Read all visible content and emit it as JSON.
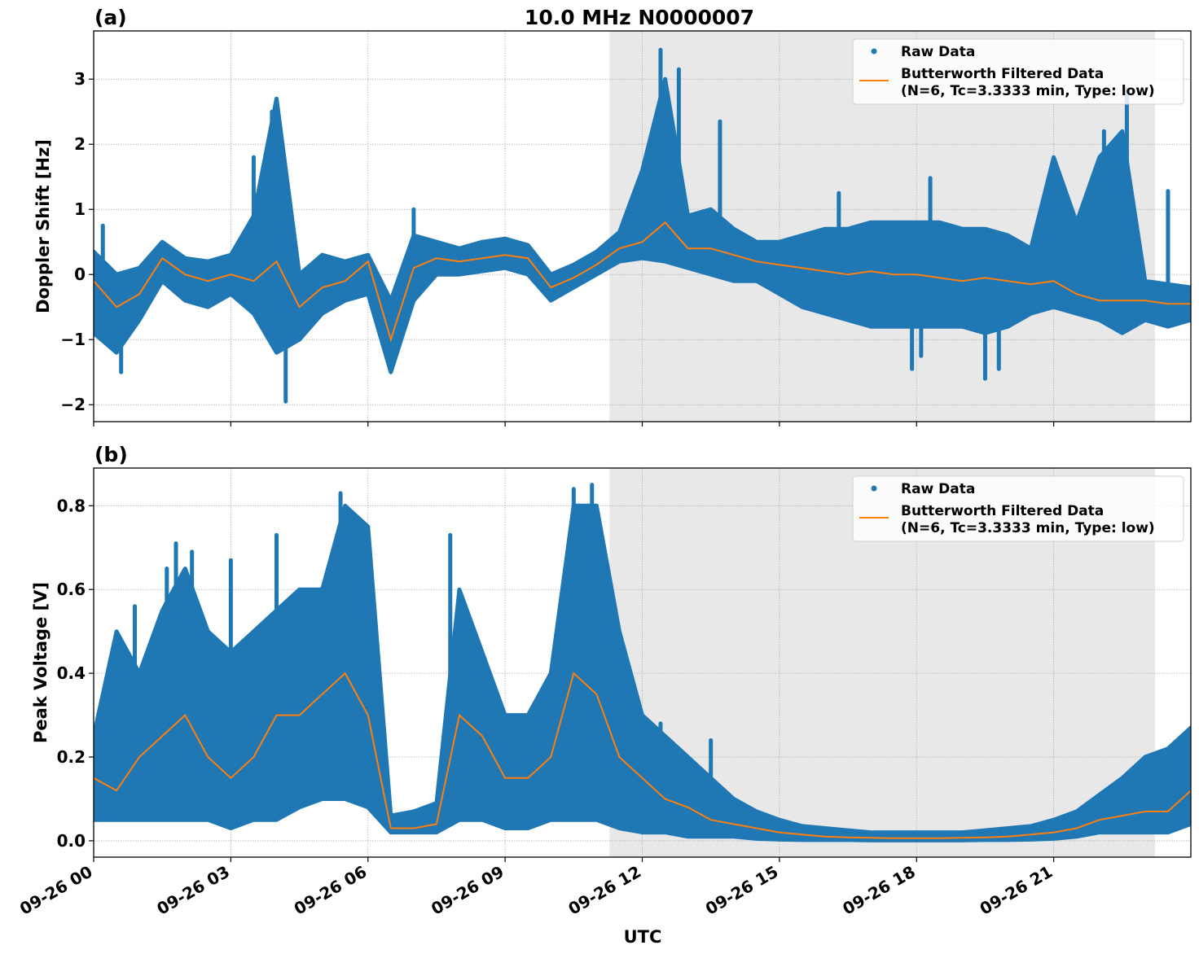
{
  "title": "10.0 MHz N0000007",
  "colors": {
    "raw": "#1f77b4",
    "filtered": "#ff7f0e",
    "shade": "#e8e8e8",
    "grid": "#b0b0b0"
  },
  "legend": {
    "raw": "Raw Data",
    "filtered_line1": "Butterworth Filtered Data",
    "filtered_line2": "(N=6, Tc=3.3333 min, Type: low)",
    "placement": "upper-right"
  },
  "xlabel": "UTC",
  "x_ticks": [
    "09-26 00",
    "09-26 03",
    "09-26 06",
    "09-26 09",
    "09-26 12",
    "09-26 15",
    "09-26 18",
    "09-26 21"
  ],
  "chart_data": [
    {
      "type": "scatter+line",
      "panel_label": "(a)",
      "ylabel": "Doppler Shift [Hz]",
      "ylim": [
        -2.26,
        3.74
      ],
      "xlim": [
        "00:00",
        "24:00"
      ],
      "y_ticks": [
        "−2",
        "−1",
        "0",
        "1",
        "2",
        "3"
      ],
      "y_tick_values": [
        -2,
        -1,
        0,
        1,
        2,
        3
      ],
      "grid": true,
      "shaded_interval": [
        "11:17",
        "23:13"
      ],
      "x": [
        "00:00",
        "00:30",
        "01:00",
        "01:30",
        "02:00",
        "02:30",
        "03:00",
        "03:30",
        "04:00",
        "04:30",
        "05:00",
        "05:30",
        "06:00",
        "06:30",
        "07:00",
        "07:30",
        "08:00",
        "08:30",
        "09:00",
        "09:30",
        "10:00",
        "10:30",
        "11:00",
        "11:30",
        "12:00",
        "12:30",
        "13:00",
        "13:30",
        "14:00",
        "14:30",
        "15:00",
        "15:30",
        "16:00",
        "16:30",
        "17:00",
        "17:30",
        "18:00",
        "18:30",
        "19:00",
        "19:30",
        "20:00",
        "20:30",
        "21:00",
        "21:30",
        "22:00",
        "22:30",
        "23:00",
        "23:30",
        "24:00"
      ],
      "filtered": [
        -0.1,
        -0.5,
        -0.3,
        0.25,
        0.0,
        -0.1,
        0.0,
        -0.1,
        0.2,
        -0.5,
        -0.2,
        -0.1,
        0.2,
        -1.0,
        0.1,
        0.25,
        0.2,
        0.25,
        0.3,
        0.25,
        -0.2,
        -0.05,
        0.15,
        0.4,
        0.5,
        0.8,
        0.4,
        0.4,
        0.3,
        0.2,
        0.15,
        0.1,
        0.05,
        0.0,
        0.05,
        0.0,
        0.0,
        -0.05,
        -0.1,
        -0.05,
        -0.1,
        -0.15,
        -0.1,
        -0.3,
        -0.4,
        -0.4,
        -0.4,
        -0.45,
        -0.45
      ],
      "raw_low": [
        -0.9,
        -1.2,
        -0.7,
        -0.1,
        -0.4,
        -0.5,
        -0.3,
        -0.6,
        -1.2,
        -1.0,
        -0.6,
        -0.4,
        -0.3,
        -1.5,
        -0.4,
        0.0,
        0.0,
        0.05,
        0.1,
        0.0,
        -0.4,
        -0.2,
        0.0,
        0.2,
        0.25,
        0.2,
        0.1,
        0.0,
        -0.1,
        -0.1,
        -0.3,
        -0.5,
        -0.6,
        -0.7,
        -0.8,
        -0.8,
        -0.8,
        -0.8,
        -0.8,
        -0.9,
        -0.8,
        -0.6,
        -0.5,
        -0.6,
        -0.7,
        -0.9,
        -0.7,
        -0.8,
        -0.7
      ],
      "raw_high": [
        0.35,
        0.0,
        0.1,
        0.5,
        0.25,
        0.2,
        0.3,
        0.9,
        2.7,
        0.0,
        0.3,
        0.2,
        0.3,
        -0.4,
        0.6,
        0.5,
        0.4,
        0.5,
        0.55,
        0.45,
        0.0,
        0.15,
        0.35,
        0.65,
        1.6,
        3.0,
        0.9,
        1.0,
        0.7,
        0.5,
        0.5,
        0.6,
        0.7,
        0.7,
        0.8,
        0.8,
        0.8,
        0.8,
        0.7,
        0.7,
        0.6,
        0.4,
        1.8,
        0.8,
        1.8,
        2.2,
        -0.1,
        -0.15,
        -0.2
      ],
      "raw_outliers": [
        [
          "04:12",
          -1.95
        ],
        [
          "03:30",
          1.8
        ],
        [
          "12:24",
          3.45
        ],
        [
          "12:48",
          3.15
        ],
        [
          "13:42",
          2.35
        ],
        [
          "16:18",
          1.25
        ],
        [
          "17:54",
          -1.45
        ],
        [
          "18:06",
          -1.25
        ],
        [
          "19:30",
          -1.6
        ],
        [
          "19:48",
          -1.45
        ],
        [
          "22:06",
          2.2
        ],
        [
          "22:36",
          2.85
        ],
        [
          "23:30",
          1.28
        ],
        [
          "00:12",
          0.75
        ],
        [
          "00:36",
          -1.5
        ],
        [
          "07:00",
          1.0
        ],
        [
          "18:18",
          1.48
        ],
        [
          "04:00",
          2.1
        ],
        [
          "03:54",
          2.5
        ]
      ]
    },
    {
      "type": "scatter+line",
      "panel_label": "(b)",
      "ylabel": "Peak Voltage [V]",
      "ylim": [
        -0.039,
        0.89
      ],
      "xlim": [
        "00:00",
        "24:00"
      ],
      "y_ticks": [
        "0.0",
        "0.2",
        "0.4",
        "0.6",
        "0.8"
      ],
      "y_tick_values": [
        0,
        0.2,
        0.4,
        0.6,
        0.8
      ],
      "grid": true,
      "shaded_interval": [
        "11:17",
        "23:13"
      ],
      "x": [
        "00:00",
        "00:30",
        "01:00",
        "01:30",
        "02:00",
        "02:30",
        "03:00",
        "03:30",
        "04:00",
        "04:30",
        "05:00",
        "05:30",
        "06:00",
        "06:30",
        "07:00",
        "07:30",
        "08:00",
        "08:30",
        "09:00",
        "09:30",
        "10:00",
        "10:30",
        "11:00",
        "11:30",
        "12:00",
        "12:30",
        "13:00",
        "13:30",
        "14:00",
        "14:30",
        "15:00",
        "15:30",
        "16:00",
        "16:30",
        "17:00",
        "17:30",
        "18:00",
        "18:30",
        "19:00",
        "19:30",
        "20:00",
        "20:30",
        "21:00",
        "21:30",
        "22:00",
        "22:30",
        "23:00",
        "23:30",
        "24:00"
      ],
      "filtered": [
        0.15,
        0.12,
        0.2,
        0.25,
        0.3,
        0.2,
        0.15,
        0.2,
        0.3,
        0.3,
        0.35,
        0.4,
        0.3,
        0.03,
        0.03,
        0.04,
        0.3,
        0.25,
        0.15,
        0.15,
        0.2,
        0.4,
        0.35,
        0.2,
        0.15,
        0.1,
        0.08,
        0.05,
        0.04,
        0.03,
        0.02,
        0.015,
        0.01,
        0.008,
        0.007,
        0.006,
        0.006,
        0.006,
        0.007,
        0.008,
        0.01,
        0.015,
        0.02,
        0.03,
        0.05,
        0.06,
        0.07,
        0.07,
        0.12
      ],
      "raw_low": [
        0.05,
        0.05,
        0.05,
        0.05,
        0.05,
        0.05,
        0.03,
        0.05,
        0.05,
        0.08,
        0.1,
        0.1,
        0.08,
        0.02,
        0.02,
        0.02,
        0.05,
        0.05,
        0.03,
        0.03,
        0.05,
        0.05,
        0.05,
        0.03,
        0.02,
        0.02,
        0.01,
        0.01,
        0.01,
        0.005,
        0.003,
        0.002,
        0.002,
        0.002,
        0.001,
        0.001,
        0.001,
        0.001,
        0.001,
        0.002,
        0.002,
        0.003,
        0.005,
        0.01,
        0.02,
        0.02,
        0.02,
        0.02,
        0.04
      ],
      "raw_high": [
        0.25,
        0.5,
        0.4,
        0.55,
        0.65,
        0.5,
        0.45,
        0.5,
        0.55,
        0.6,
        0.6,
        0.8,
        0.75,
        0.06,
        0.07,
        0.09,
        0.6,
        0.45,
        0.3,
        0.3,
        0.4,
        0.8,
        0.8,
        0.5,
        0.3,
        0.25,
        0.2,
        0.15,
        0.1,
        0.07,
        0.05,
        0.035,
        0.03,
        0.025,
        0.02,
        0.02,
        0.02,
        0.02,
        0.02,
        0.025,
        0.03,
        0.035,
        0.05,
        0.07,
        0.11,
        0.15,
        0.2,
        0.22,
        0.27
      ],
      "raw_outliers": [
        [
          "01:48",
          0.71
        ],
        [
          "02:09",
          0.69
        ],
        [
          "03:00",
          0.67
        ],
        [
          "04:00",
          0.73
        ],
        [
          "07:48",
          0.73
        ],
        [
          "10:30",
          0.84
        ],
        [
          "10:54",
          0.85
        ],
        [
          "12:24",
          0.28
        ],
        [
          "00:54",
          0.56
        ],
        [
          "13:30",
          0.24
        ],
        [
          "05:24",
          0.83
        ],
        [
          "01:36",
          0.65
        ]
      ]
    }
  ]
}
